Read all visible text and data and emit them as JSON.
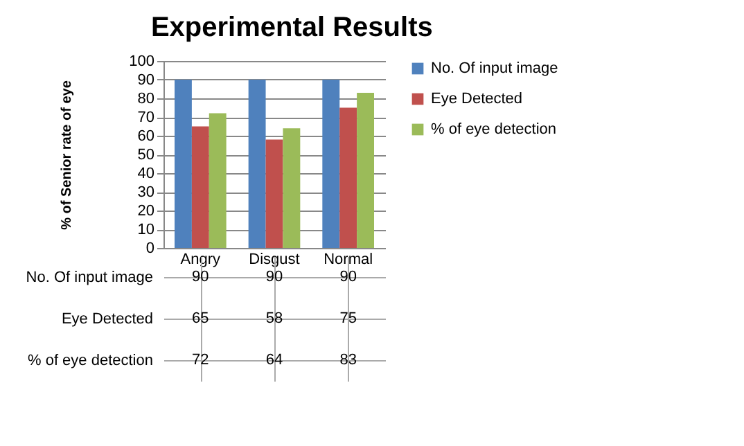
{
  "chart_data": {
    "type": "bar",
    "title": "Experimental Results",
    "ylabel": "% of Senior rate of eye",
    "categories": [
      "Angry",
      "Disgust",
      "Normal"
    ],
    "series": [
      {
        "name": "No. Of input image",
        "color": "#4f81bd",
        "values": [
          90,
          90,
          90
        ]
      },
      {
        "name": "Eye Detected",
        "color": "#c0504d",
        "values": [
          65,
          58,
          75
        ]
      },
      {
        "name": "% of eye detection",
        "color": "#9bbb59",
        "values": [
          72,
          64,
          83
        ]
      }
    ],
    "ylim": [
      0,
      100
    ],
    "yticks": [
      0,
      10,
      20,
      30,
      40,
      50,
      60,
      70,
      80,
      90,
      100
    ],
    "grid": true,
    "legend": "right",
    "data_labels": true
  }
}
